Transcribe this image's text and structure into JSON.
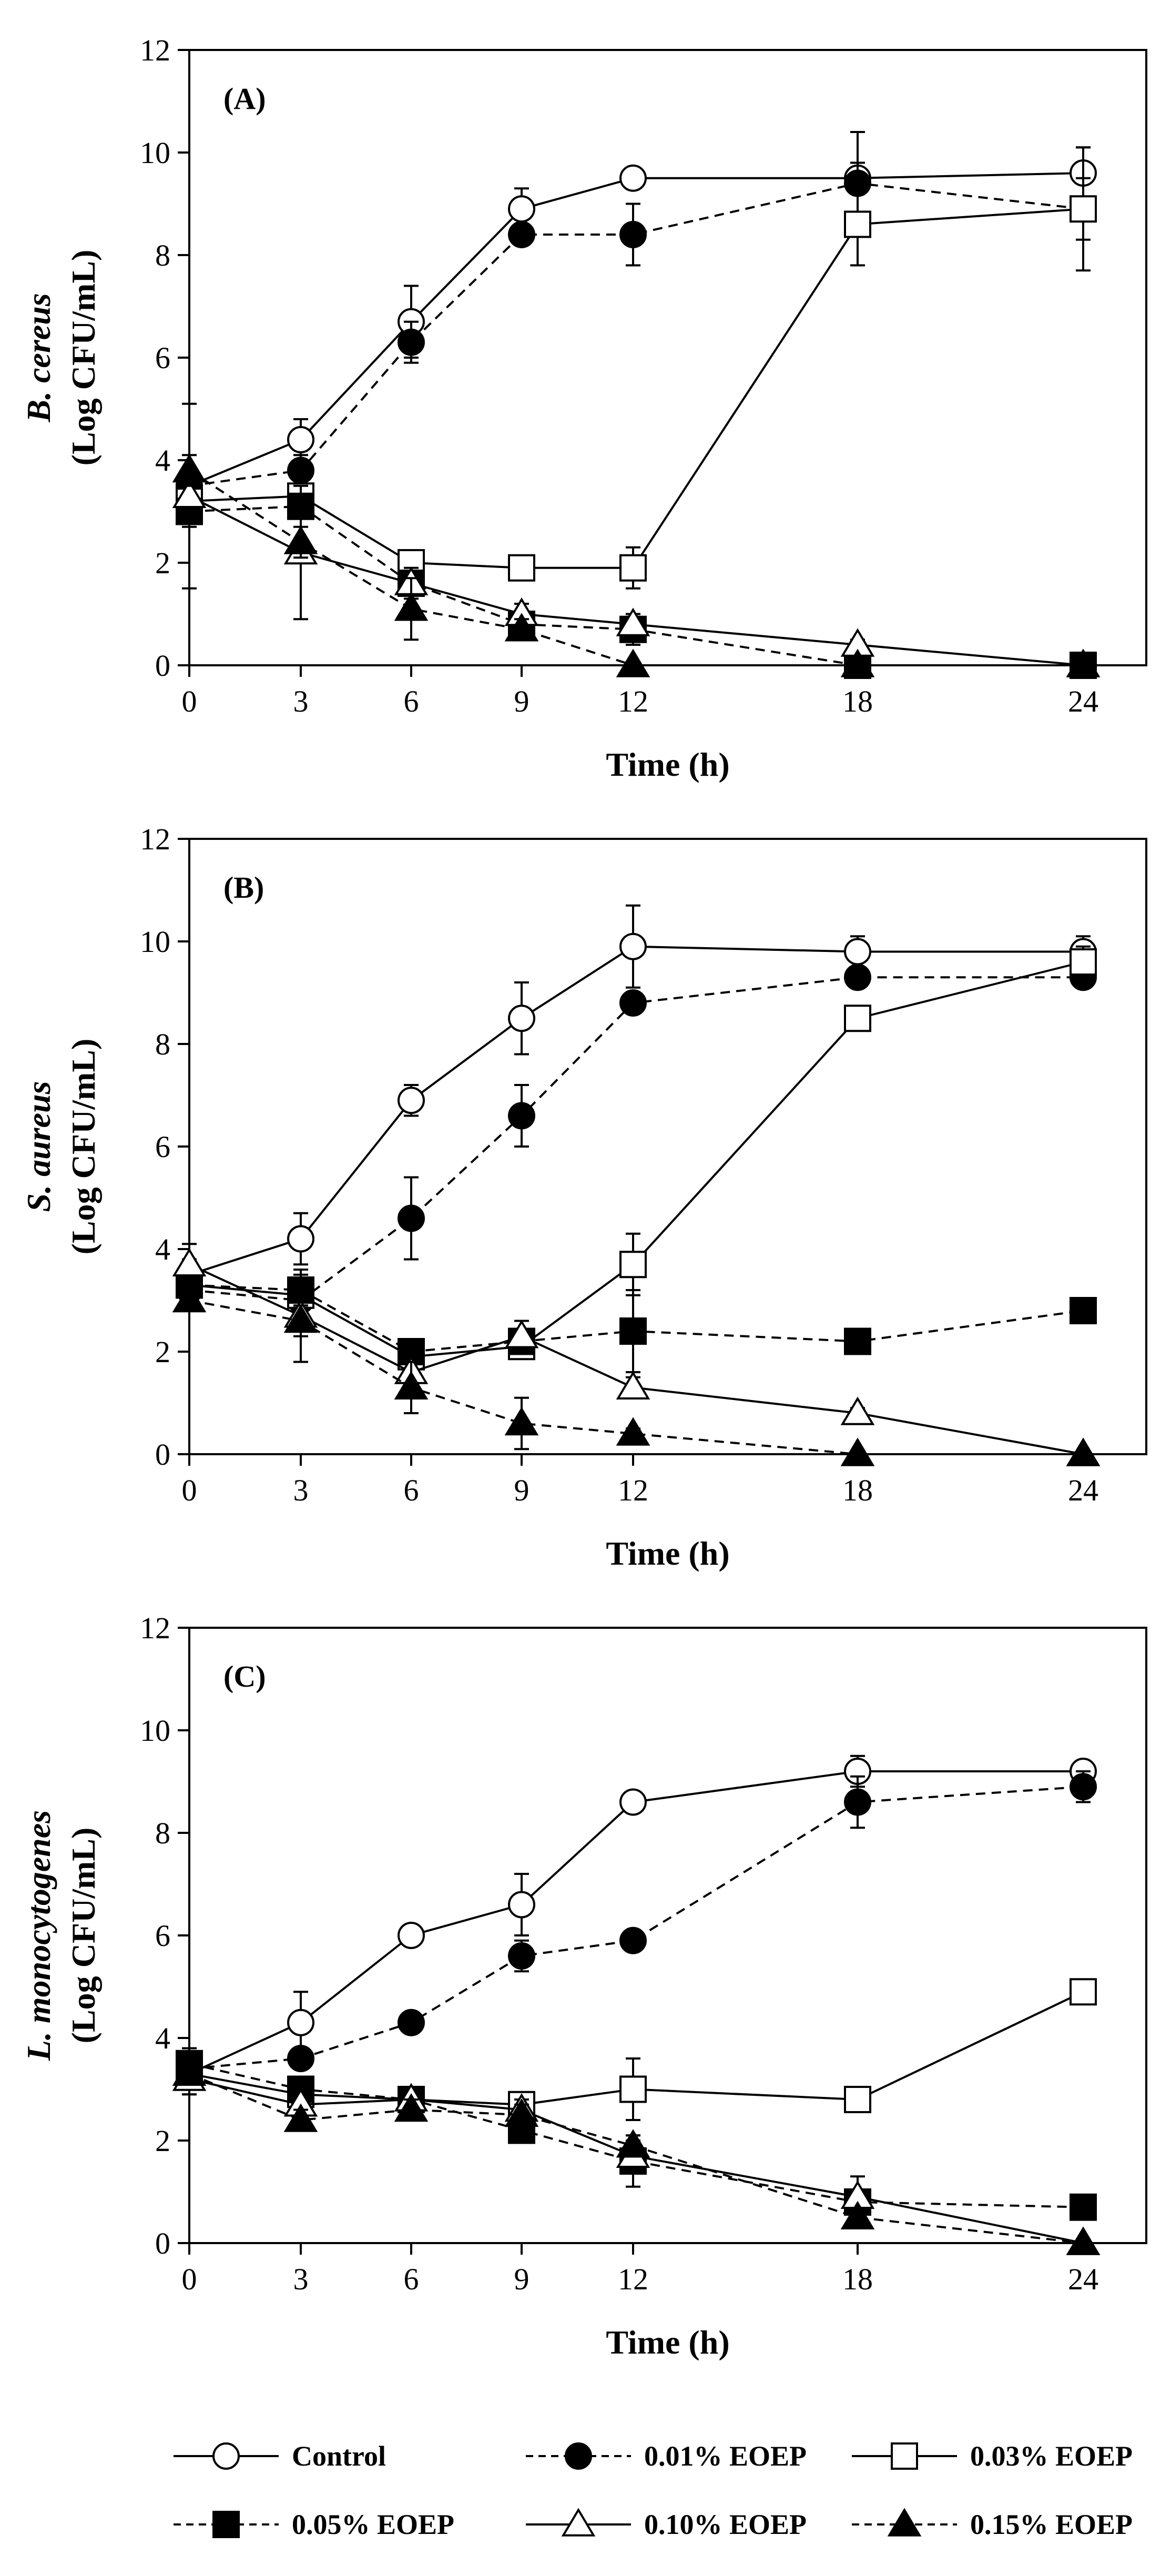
{
  "chart_data": [
    {
      "type": "line",
      "panel_label": "(A)",
      "ylabel_species": "B. cereus",
      "ylabel_unit": "(Log CFU/mL)",
      "xlabel": "Time (h)",
      "x": [
        0,
        3,
        6,
        9,
        12,
        18,
        24
      ],
      "xticks": [
        "0",
        "3",
        "6",
        "9",
        "12",
        "18",
        "24"
      ],
      "yticks": [
        "0",
        "2",
        "4",
        "6",
        "8",
        "10",
        "12"
      ],
      "ylim": [
        0,
        12
      ],
      "series": [
        {
          "name": "Control",
          "values": [
            3.5,
            4.4,
            6.7,
            8.9,
            9.5,
            9.5,
            9.6
          ],
          "errors": [
            0.3,
            0.4,
            0.7,
            0.4,
            0.1,
            0.3,
            0.5
          ]
        },
        {
          "name": "0.01% EOEP",
          "values": [
            3.5,
            3.8,
            6.3,
            8.4,
            8.4,
            9.4,
            8.9
          ],
          "errors": [
            0.3,
            0.3,
            0.4,
            0.1,
            0.6,
            1.0,
            0.6
          ]
        },
        {
          "name": "0.03% EOEP",
          "values": [
            3.2,
            3.3,
            2.0,
            1.9,
            1.9,
            8.6,
            8.9
          ],
          "errors": [
            0.4,
            0.2,
            0.1,
            0.2,
            0.4,
            0.8,
            1.2
          ]
        },
        {
          "name": "0.05% EOEP",
          "values": [
            3.0,
            3.1,
            1.6,
            0.8,
            0.7,
            0.0,
            0.0
          ],
          "errors": [
            0.3,
            0.2,
            0.2,
            0.2,
            0.3,
            0.0,
            0.0
          ]
        },
        {
          "name": "0.10% EOEP",
          "values": [
            3.3,
            2.2,
            1.6,
            1.0,
            0.8,
            0.4,
            0.0
          ],
          "errors": [
            1.8,
            1.3,
            0.3,
            0.2,
            0.2,
            0.1,
            0.0
          ]
        },
        {
          "name": "0.15% EOEP",
          "values": [
            3.8,
            2.4,
            1.1,
            0.7,
            0.0,
            0.0,
            0.0
          ],
          "errors": [
            0.3,
            0.3,
            0.6,
            0.2,
            0.0,
            0.0,
            0.0
          ]
        }
      ]
    },
    {
      "type": "line",
      "panel_label": "(B)",
      "ylabel_species": "S. aureus",
      "ylabel_unit": "(Log CFU/mL)",
      "xlabel": "Time (h)",
      "x": [
        0,
        3,
        6,
        9,
        12,
        18,
        24
      ],
      "xticks": [
        "0",
        "3",
        "6",
        "9",
        "12",
        "18",
        "24"
      ],
      "yticks": [
        "0",
        "2",
        "4",
        "6",
        "8",
        "10",
        "12"
      ],
      "ylim": [
        0,
        12
      ],
      "series": [
        {
          "name": "Control",
          "values": [
            3.5,
            4.2,
            6.9,
            8.5,
            9.9,
            9.8,
            9.8
          ],
          "errors": [
            0.3,
            0.5,
            0.3,
            0.7,
            0.8,
            0.3,
            0.3
          ]
        },
        {
          "name": "0.01% EOEP",
          "values": [
            3.2,
            3.0,
            4.6,
            6.6,
            8.8,
            9.3,
            9.3
          ],
          "errors": [
            0.2,
            0.3,
            0.8,
            0.6,
            0.2,
            0.2,
            0.2
          ]
        },
        {
          "name": "0.03% EOEP",
          "values": [
            3.3,
            3.1,
            1.9,
            2.1,
            3.7,
            8.5,
            9.6
          ],
          "errors": [
            0.2,
            0.3,
            0.2,
            0.2,
            0.6,
            0.1,
            0.3
          ]
        },
        {
          "name": "0.05% EOEP",
          "values": [
            3.3,
            3.2,
            2.0,
            2.2,
            2.4,
            2.2,
            2.8
          ],
          "errors": [
            0.3,
            0.3,
            0.2,
            0.2,
            0.8,
            0.2,
            0.1
          ]
        },
        {
          "name": "0.10% EOEP",
          "values": [
            3.7,
            2.7,
            1.6,
            2.3,
            1.3,
            0.8,
            0.0
          ],
          "errors": [
            0.4,
            0.9,
            0.2,
            0.3,
            0.2,
            0.1,
            0.0
          ]
        },
        {
          "name": "0.15% EOEP",
          "values": [
            3.0,
            2.6,
            1.3,
            0.6,
            0.4,
            0.0,
            0.0
          ],
          "errors": [
            0.2,
            0.3,
            0.5,
            0.5,
            0.1,
            0.0,
            0.0
          ]
        }
      ]
    },
    {
      "type": "line",
      "panel_label": "(C)",
      "ylabel_species": "L. monocytogenes",
      "ylabel_unit": "(Log CFU/mL)",
      "xlabel": "Time (h)",
      "x": [
        0,
        3,
        6,
        9,
        12,
        18,
        24
      ],
      "xticks": [
        "0",
        "3",
        "6",
        "9",
        "12",
        "18",
        "24"
      ],
      "yticks": [
        "0",
        "2",
        "4",
        "6",
        "8",
        "10",
        "12"
      ],
      "ylim": [
        0,
        12
      ],
      "series": [
        {
          "name": "Control",
          "values": [
            3.3,
            4.3,
            6.0,
            6.6,
            8.6,
            9.2,
            9.2
          ],
          "errors": [
            0.4,
            0.6,
            0.1,
            0.6,
            0.1,
            0.3,
            0.1
          ]
        },
        {
          "name": "0.01% EOEP",
          "values": [
            3.4,
            3.6,
            4.3,
            5.6,
            5.9,
            8.6,
            8.9
          ],
          "errors": [
            0.3,
            0.2,
            0.1,
            0.3,
            0.1,
            0.5,
            0.3
          ]
        },
        {
          "name": "0.03% EOEP",
          "values": [
            3.3,
            2.9,
            2.8,
            2.7,
            3.0,
            2.8,
            4.9
          ],
          "errors": [
            0.3,
            0.3,
            0.2,
            0.2,
            0.6,
            0.2,
            0.1
          ]
        },
        {
          "name": "0.05% EOEP",
          "values": [
            3.5,
            3.0,
            2.8,
            2.2,
            1.6,
            0.8,
            0.7
          ],
          "errors": [
            0.3,
            0.2,
            0.2,
            0.2,
            0.5,
            0.2,
            0.1
          ]
        },
        {
          "name": "0.10% EOEP",
          "values": [
            3.2,
            2.7,
            2.8,
            2.6,
            1.7,
            0.9,
            0.0
          ],
          "errors": [
            0.3,
            0.2,
            0.2,
            0.2,
            0.3,
            0.4,
            0.0
          ]
        },
        {
          "name": "0.15% EOEP",
          "values": [
            3.3,
            2.4,
            2.6,
            2.5,
            1.9,
            0.5,
            0.0
          ],
          "errors": [
            0.2,
            0.2,
            0.2,
            0.2,
            0.2,
            0.1,
            0.0
          ]
        }
      ]
    }
  ],
  "legend": {
    "items": [
      {
        "label": "Control",
        "marker": "circle-open",
        "line": "solid"
      },
      {
        "label": "0.01% EOEP",
        "marker": "circle-filled",
        "line": "dashed"
      },
      {
        "label": "0.03% EOEP",
        "marker": "square-open",
        "line": "solid"
      },
      {
        "label": "0.05% EOEP",
        "marker": "square-filled",
        "line": "dashed"
      },
      {
        "label": "0.10% EOEP",
        "marker": "triangle-open",
        "line": "solid"
      },
      {
        "label": "0.15% EOEP",
        "marker": "triangle-filled",
        "line": "dashed"
      }
    ]
  },
  "colors": {
    "ink": "#000000",
    "paper": "#ffffff"
  }
}
